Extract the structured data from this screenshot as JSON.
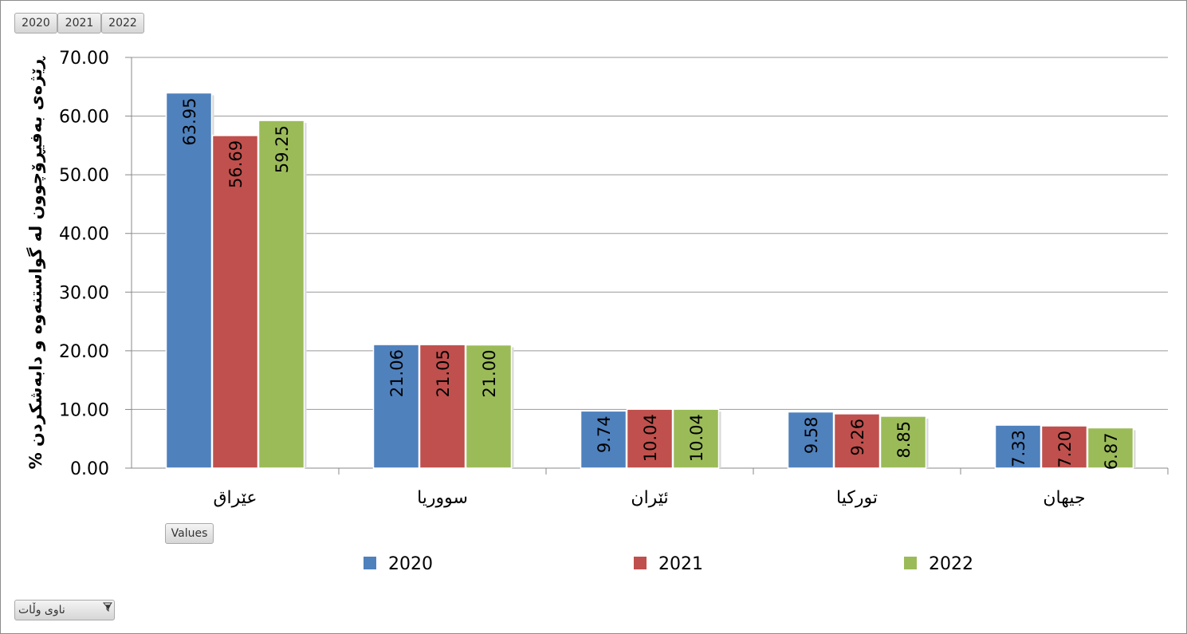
{
  "pivot_buttons": {
    "column_items": [
      "2020",
      "2021",
      "2022"
    ],
    "values_label": "Values",
    "filter_label": "ناوی وڵات"
  },
  "colors": {
    "2020": "#4f81bd",
    "2021": "#c0504d",
    "2022": "#9bbb59",
    "grid": "#999999"
  },
  "chart_data": {
    "type": "bar",
    "ylabel": "ڕێژەی بەفیڕۆچوون لە گواستنەوە و دابەشکردن %",
    "ylim": [
      0,
      70
    ],
    "yticks": [
      "0.00",
      "10.00",
      "20.00",
      "30.00",
      "40.00",
      "50.00",
      "60.00",
      "70.00"
    ],
    "categories": [
      "عێراق",
      "سووریا",
      "ئێران",
      "تورکیا",
      "جیهان"
    ],
    "series": [
      {
        "name": "2020",
        "values": [
          63.95,
          21.06,
          9.74,
          9.58,
          7.33
        ],
        "labels": [
          "63.95",
          "21.06",
          "9.74",
          "9.58",
          "7.33"
        ]
      },
      {
        "name": "2021",
        "values": [
          56.69,
          21.05,
          10.04,
          9.26,
          7.2
        ],
        "labels": [
          "56.69",
          "21.05",
          "10.04",
          "9.26",
          "7.20"
        ]
      },
      {
        "name": "2022",
        "values": [
          59.25,
          21.0,
          10.04,
          8.85,
          6.87
        ],
        "labels": [
          "59.25",
          "21.00",
          "10.04",
          "8.85",
          "6.87"
        ]
      }
    ],
    "legend": [
      "2020",
      "2021",
      "2022"
    ],
    "legend_position": "bottom",
    "grid": true
  }
}
